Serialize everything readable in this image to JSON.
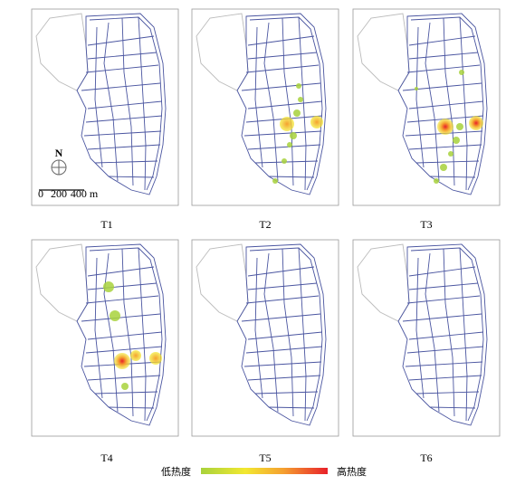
{
  "panels": [
    {
      "label": "T1"
    },
    {
      "label": "T2"
    },
    {
      "label": "T3"
    },
    {
      "label": "T4"
    },
    {
      "label": "T5"
    },
    {
      "label": "T6"
    }
  ],
  "scale": {
    "north": "N",
    "labels": [
      "0",
      "200",
      "400 m"
    ]
  },
  "legend": {
    "low": "低热度",
    "high": "高热度"
  }
}
